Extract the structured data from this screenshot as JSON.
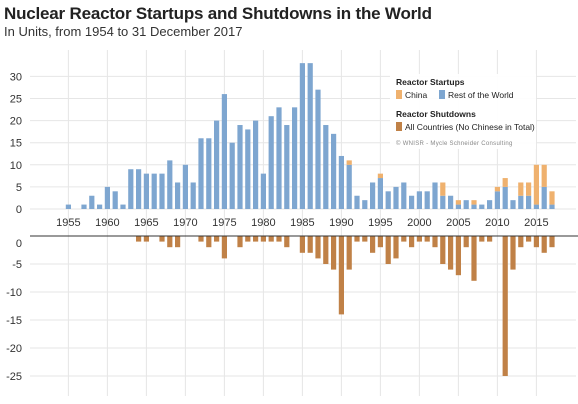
{
  "title": "Nuclear Reactor Startups and Shutdowns in the World",
  "subtitle": "In Units, from 1954 to 31 December 2017",
  "legend": {
    "startups_title": "Reactor Startups",
    "china_label": "China",
    "rest_label": "Rest of the World",
    "shutdowns_title": "Reactor Shutdowns",
    "shutdowns_label": "All Countries (No Chinese in Total)",
    "credit": "© WNISR - Mycle Schneider Consulting"
  },
  "colors": {
    "rest": "#7ea6d0",
    "china": "#efb16e",
    "shutdown": "#c08147",
    "grid": "#e6e6e6"
  },
  "chart_data": [
    {
      "type": "bar",
      "name": "startups",
      "x": [
        1954,
        1955,
        1956,
        1957,
        1958,
        1959,
        1960,
        1961,
        1962,
        1963,
        1964,
        1965,
        1966,
        1967,
        1968,
        1969,
        1970,
        1971,
        1972,
        1973,
        1974,
        1975,
        1976,
        1977,
        1978,
        1979,
        1980,
        1981,
        1982,
        1983,
        1984,
        1985,
        1986,
        1987,
        1988,
        1989,
        1990,
        1991,
        1992,
        1993,
        1994,
        1995,
        1996,
        1997,
        1998,
        1999,
        2000,
        2001,
        2002,
        2003,
        2004,
        2005,
        2006,
        2007,
        2008,
        2009,
        2010,
        2011,
        2012,
        2013,
        2014,
        2015,
        2016,
        2017
      ],
      "series": [
        {
          "name": "Rest of the World",
          "values": [
            0,
            1,
            0,
            1,
            3,
            1,
            5,
            4,
            1,
            9,
            9,
            8,
            8,
            8,
            11,
            6,
            10,
            6,
            16,
            16,
            20,
            26,
            15,
            19,
            18,
            20,
            8,
            21,
            23,
            19,
            23,
            33,
            33,
            27,
            19,
            17,
            12,
            10,
            3,
            2,
            6,
            7,
            4,
            5,
            6,
            3,
            4,
            4,
            6,
            3,
            3,
            1,
            2,
            1,
            1,
            2,
            4,
            5,
            2,
            3,
            3,
            1,
            5,
            1
          ]
        },
        {
          "name": "China",
          "values": [
            0,
            0,
            0,
            0,
            0,
            0,
            0,
            0,
            0,
            0,
            0,
            0,
            0,
            0,
            0,
            0,
            0,
            0,
            0,
            0,
            0,
            0,
            0,
            0,
            0,
            0,
            0,
            0,
            0,
            0,
            0,
            0,
            0,
            0,
            0,
            0,
            0,
            1,
            0,
            0,
            0,
            1,
            0,
            0,
            0,
            0,
            0,
            0,
            0,
            3,
            0,
            1,
            0,
            1,
            0,
            0,
            1,
            2,
            0,
            3,
            3,
            9,
            5,
            3
          ]
        }
      ],
      "ylim": [
        0,
        33
      ],
      "yticks": [
        0,
        5,
        10,
        15,
        20,
        25,
        30
      ]
    },
    {
      "type": "bar",
      "name": "shutdowns",
      "x": [
        1954,
        1955,
        1956,
        1957,
        1958,
        1959,
        1960,
        1961,
        1962,
        1963,
        1964,
        1965,
        1966,
        1967,
        1968,
        1969,
        1970,
        1971,
        1972,
        1973,
        1974,
        1975,
        1976,
        1977,
        1978,
        1979,
        1980,
        1981,
        1982,
        1983,
        1984,
        1985,
        1986,
        1987,
        1988,
        1989,
        1990,
        1991,
        1992,
        1993,
        1994,
        1995,
        1996,
        1997,
        1998,
        1999,
        2000,
        2001,
        2002,
        2003,
        2004,
        2005,
        2006,
        2007,
        2008,
        2009,
        2010,
        2011,
        2012,
        2013,
        2014,
        2015,
        2016,
        2017
      ],
      "series": [
        {
          "name": "All Countries (No Chinese in Total)",
          "values": [
            0,
            0,
            0,
            0,
            0,
            0,
            0,
            0,
            0,
            0,
            -1,
            -1,
            0,
            -1,
            -2,
            -2,
            0,
            0,
            -1,
            -2,
            -1,
            -4,
            0,
            -2,
            -1,
            -1,
            -1,
            -1,
            -1,
            -2,
            0,
            -3,
            -3,
            -4,
            -5,
            -6,
            -14,
            -6,
            -1,
            -1,
            -3,
            -2,
            -5,
            -4,
            -1,
            -2,
            -1,
            -1,
            -2,
            -5,
            -6,
            -7,
            -2,
            -8,
            -1,
            -1,
            0,
            -25,
            -6,
            -2,
            -1,
            -2,
            -3,
            -2
          ]
        }
      ],
      "ylim": [
        -26,
        0
      ],
      "yticks": [
        0,
        -5,
        -10,
        -15,
        -20,
        -25
      ]
    }
  ],
  "xticks": [
    1955,
    1960,
    1965,
    1970,
    1975,
    1980,
    1985,
    1990,
    1995,
    2000,
    2005,
    2010,
    2015
  ]
}
